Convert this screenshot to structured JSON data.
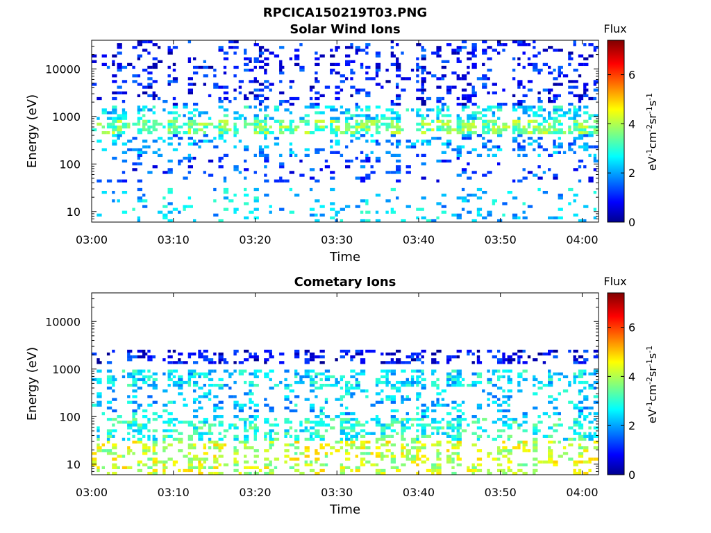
{
  "figure": {
    "filename_title": "RPCICA150219T03.PNG"
  },
  "colorbar": {
    "title": "Flux",
    "unit_base": "eV",
    "unit_exp1": "-1",
    "unit_mid": "cm",
    "unit_exp2": "-2",
    "unit_sr": "sr",
    "unit_exp3": "-1",
    "unit_s": "s",
    "unit_exp4": "-1",
    "range": [
      0,
      7.4
    ],
    "ticks": [
      0,
      2,
      4,
      6
    ],
    "tick_labels": [
      "0",
      "2",
      "4",
      "6"
    ],
    "colormap": "jet"
  },
  "chart_data": [
    {
      "type": "heatmap",
      "title": "Solar Wind Ions",
      "xlabel": "Time",
      "ylabel": "Energy (eV)",
      "x_tick_labels": [
        "03:00",
        "03:10",
        "03:20",
        "03:30",
        "03:40",
        "03:50",
        "04:00"
      ],
      "x_ticks_min": [
        0,
        10,
        20,
        30,
        40,
        50,
        60
      ],
      "xlim_min": [
        0,
        62
      ],
      "y_scale": "log",
      "y_tick_labels": [
        "10",
        "100",
        "1000",
        "10000"
      ],
      "y_ticks": [
        10,
        100,
        1000,
        10000
      ],
      "ylim": [
        6,
        40000
      ],
      "profile": {
        "bands": [
          {
            "energy_low": 400,
            "energy_high": 900,
            "flux": 3.6,
            "occupancy": 0.85
          },
          {
            "energy_low": 900,
            "energy_high": 1800,
            "flux": 2.6,
            "occupancy": 0.55
          },
          {
            "energy_low": 1800,
            "energy_high": 40000,
            "flux": 1.0,
            "occupancy": 0.28
          },
          {
            "energy_low": 150,
            "energy_high": 400,
            "flux": 2.0,
            "occupancy": 0.35
          },
          {
            "energy_low": 40,
            "energy_high": 150,
            "flux": 1.3,
            "occupancy": 0.2
          },
          {
            "energy_low": 6,
            "energy_high": 30,
            "flux": 2.4,
            "occupancy": 0.2
          }
        ]
      }
    },
    {
      "type": "heatmap",
      "title": "Cometary Ions",
      "xlabel": "Time",
      "ylabel": "Energy (eV)",
      "x_tick_labels": [
        "03:00",
        "03:10",
        "03:20",
        "03:30",
        "03:40",
        "03:50",
        "04:00"
      ],
      "x_ticks_min": [
        0,
        10,
        20,
        30,
        40,
        50,
        60
      ],
      "xlim_min": [
        0,
        62
      ],
      "y_scale": "log",
      "y_tick_labels": [
        "10",
        "100",
        "1000",
        "10000"
      ],
      "y_ticks": [
        10,
        100,
        1000,
        10000
      ],
      "ylim": [
        6,
        40000
      ],
      "profile": {
        "bands": [
          {
            "energy_low": 1200,
            "energy_high": 2500,
            "flux": 0.9,
            "occupancy": 0.45
          },
          {
            "energy_low": 450,
            "energy_high": 1000,
            "flux": 2.6,
            "occupancy": 0.6
          },
          {
            "energy_low": 100,
            "energy_high": 450,
            "flux": 2.4,
            "occupancy": 0.28
          },
          {
            "energy_low": 30,
            "energy_high": 100,
            "flux": 3.0,
            "occupancy": 0.55
          },
          {
            "energy_low": 6,
            "energy_high": 30,
            "flux": 4.2,
            "occupancy": 0.45
          }
        ]
      }
    }
  ]
}
